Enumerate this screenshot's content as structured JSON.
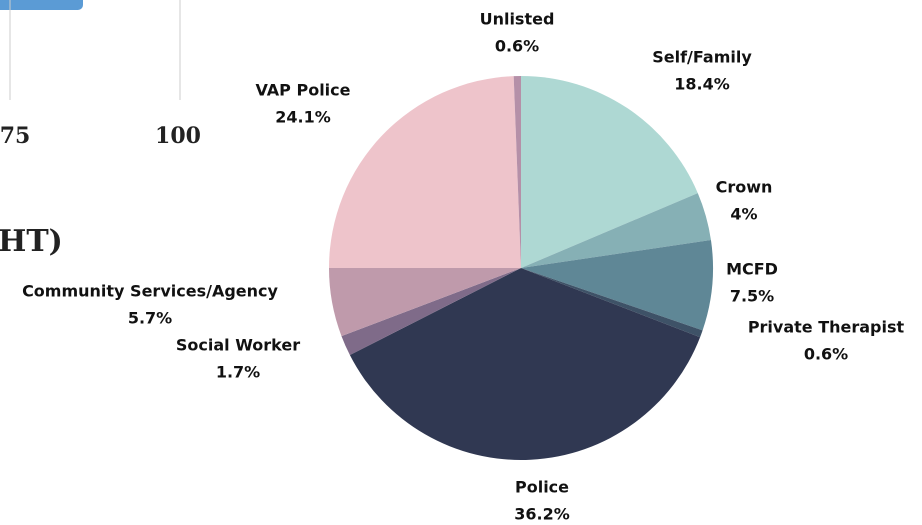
{
  "fragments": {
    "axis_ticks": [
      "75",
      "100"
    ],
    "heading": "HT)"
  },
  "chart_data": {
    "type": "pie",
    "categories": [
      "Self/Family",
      "Crown",
      "MCFD",
      "Private Therapist",
      "Police",
      "Social Worker",
      "Community Services/Agency",
      "VAP Police",
      "Unlisted"
    ],
    "values": [
      18.4,
      4,
      7.5,
      0.6,
      36.2,
      1.7,
      5.7,
      24.1,
      0.6
    ],
    "value_labels": [
      "18.4%",
      "4%",
      "7.5%",
      "0.6%",
      "36.2%",
      "1.7%",
      "5.7%",
      "24.1%",
      "0.6%"
    ],
    "colors": [
      "#aed8d3",
      "#86b0b5",
      "#5f8796",
      "#3e5267",
      "#303852",
      "#7f6b89",
      "#bf9aab",
      "#eec4cb",
      "#b590a8"
    ]
  }
}
